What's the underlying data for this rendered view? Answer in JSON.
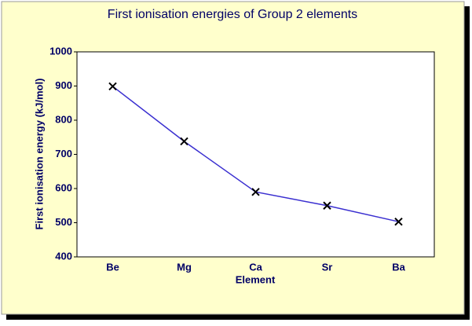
{
  "chart_data": {
    "type": "line",
    "title": "First ionisation energies of Group 2 elements",
    "x_label": "Element",
    "y_label": "First ionisation energy (kJ/mol)",
    "categories": [
      "Be",
      "Mg",
      "Ca",
      "Sr",
      "Ba"
    ],
    "values": [
      899,
      738,
      590,
      550,
      503
    ],
    "color": "#3a2fd0",
    "marker": "x",
    "ylim": [
      400,
      1000
    ],
    "yticks": [
      400,
      500,
      600,
      700,
      800,
      900,
      1000
    ],
    "grid": false
  }
}
